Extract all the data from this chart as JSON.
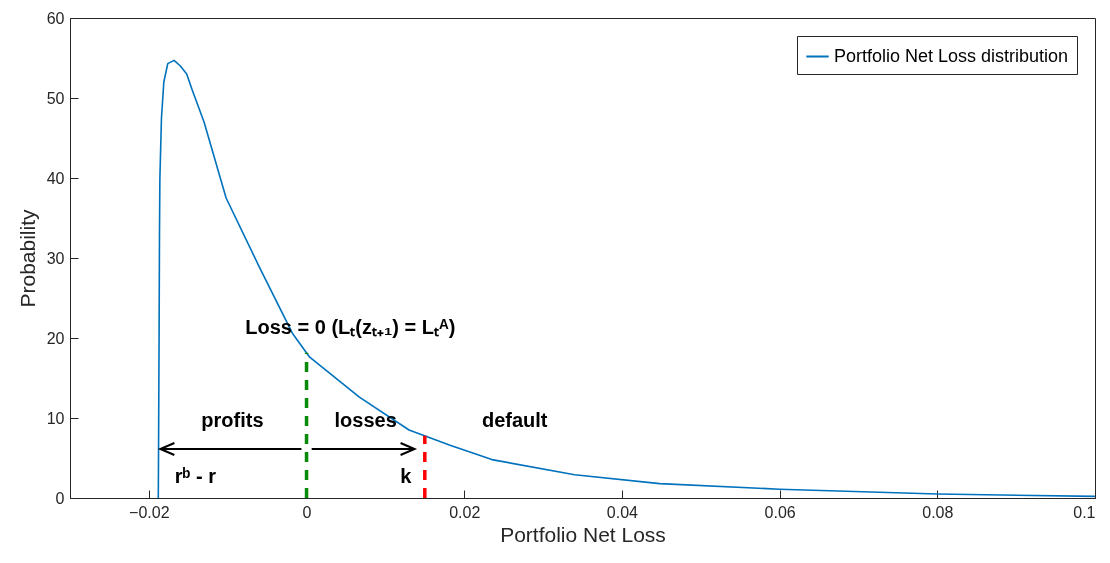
{
  "chart_data": {
    "type": "line",
    "xlabel": "Portfolio Net Loss",
    "ylabel": "Probability",
    "xlim": [
      -0.03,
      0.1
    ],
    "ylim": [
      0,
      60
    ],
    "xticks": [
      -0.02,
      0,
      0.02,
      0.04,
      0.06,
      0.08,
      0.1
    ],
    "yticks": [
      0,
      10,
      20,
      30,
      40,
      50,
      60
    ],
    "grid": false,
    "legend": "top right",
    "series": [
      {
        "name": "Portfolio Net Loss distribution",
        "color": "#0072bd",
        "x": [
          -0.0188,
          -0.01875,
          -0.0187,
          -0.01865,
          -0.0186,
          -0.0184,
          -0.0181,
          -0.0176,
          -0.0168,
          -0.016,
          -0.0152,
          -0.0145,
          -0.013,
          -0.0102,
          -0.006,
          -0.0018,
          0.0004,
          0.0067,
          0.013,
          0.0182,
          0.0235,
          0.034,
          0.0448,
          0.06,
          0.08,
          0.1
        ],
        "values": [
          0,
          10,
          20.6,
          33,
          40,
          47.5,
          52,
          54.3,
          54.7,
          54,
          53,
          51,
          47,
          37.5,
          28.9,
          20.6,
          17.6,
          12.6,
          8.5,
          6.6,
          4.8,
          2.9,
          1.8,
          1.1,
          0.5,
          0.2
        ]
      }
    ],
    "ref_lines": [
      {
        "axis": "x",
        "value": 0,
        "color": "#0a8a0a",
        "line_style": "dashed"
      },
      {
        "axis": "x",
        "value": 0.015,
        "color": "#ff0000",
        "line_style": "dashed"
      }
    ],
    "annotations": [
      "Loss = 0  (Lₜ(zₜ₊₁) = Lₜᴬ)",
      "profits",
      "losses",
      "default",
      "rᵇ - r",
      "k"
    ]
  }
}
